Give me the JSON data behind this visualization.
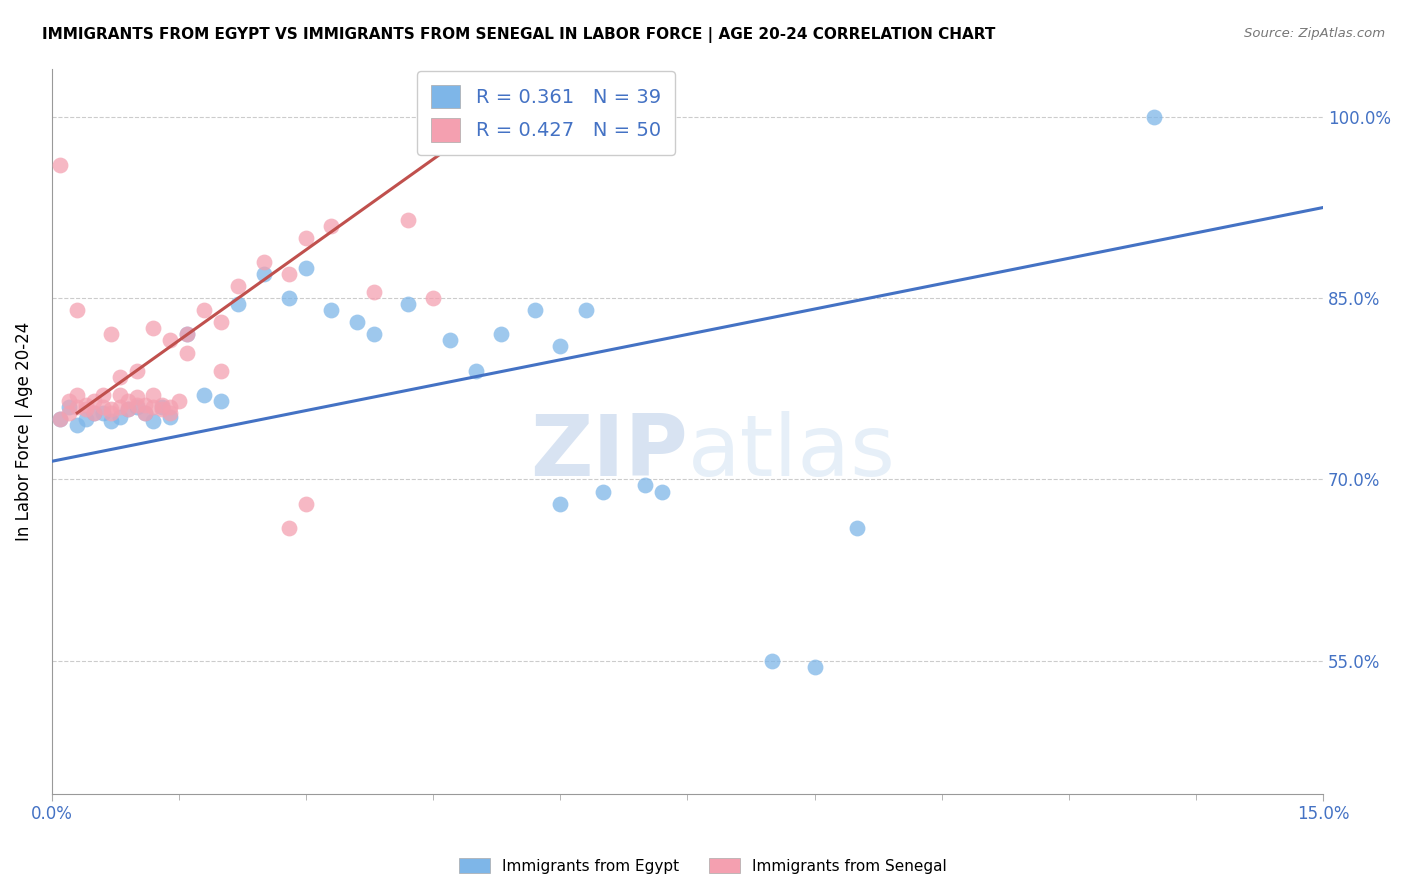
{
  "title": "IMMIGRANTS FROM EGYPT VS IMMIGRANTS FROM SENEGAL IN LABOR FORCE | AGE 20-24 CORRELATION CHART",
  "source": "Source: ZipAtlas.com",
  "ylabel": "In Labor Force | Age 20-24",
  "xlim": [
    0.0,
    0.15
  ],
  "ylim": [
    0.44,
    1.04
  ],
  "xtick_major": [
    0.0,
    0.15
  ],
  "xtick_major_labels": [
    "0.0%",
    "15.0%"
  ],
  "xtick_minor": [
    0.015,
    0.03,
    0.045,
    0.06,
    0.075,
    0.09,
    0.105,
    0.12,
    0.135
  ],
  "yticks": [
    0.55,
    0.7,
    0.85,
    1.0
  ],
  "ytick_labels": [
    "55.0%",
    "70.0%",
    "85.0%",
    "100.0%"
  ],
  "gridline_color": "#cccccc",
  "egypt_color": "#7EB6E8",
  "senegal_color": "#F4A0B0",
  "egypt_line_color": "#4472C4",
  "senegal_line_color": "#C0504D",
  "egypt_R": 0.361,
  "egypt_N": 39,
  "senegal_R": 0.427,
  "senegal_N": 50,
  "egypt_line_x0": 0.0,
  "egypt_line_y0": 0.715,
  "egypt_line_x1": 0.15,
  "egypt_line_y1": 0.925,
  "senegal_line_x0": 0.003,
  "senegal_line_y0": 0.755,
  "senegal_line_x1": 0.05,
  "senegal_line_y1": 0.99,
  "egypt_scatter_x": [
    0.001,
    0.002,
    0.003,
    0.004,
    0.005,
    0.006,
    0.007,
    0.008,
    0.009,
    0.01,
    0.011,
    0.012,
    0.013,
    0.014,
    0.016,
    0.018,
    0.02,
    0.022,
    0.025,
    0.028,
    0.03,
    0.033,
    0.036,
    0.038,
    0.042,
    0.047,
    0.05,
    0.053,
    0.057,
    0.06,
    0.063,
    0.07,
    0.072,
    0.085,
    0.09,
    0.095,
    0.13,
    0.06,
    0.065
  ],
  "egypt_scatter_y": [
    0.75,
    0.76,
    0.745,
    0.75,
    0.755,
    0.755,
    0.748,
    0.752,
    0.758,
    0.76,
    0.755,
    0.748,
    0.76,
    0.752,
    0.82,
    0.77,
    0.765,
    0.845,
    0.87,
    0.85,
    0.875,
    0.84,
    0.83,
    0.82,
    0.845,
    0.815,
    0.79,
    0.82,
    0.84,
    0.81,
    0.84,
    0.695,
    0.69,
    0.55,
    0.545,
    0.66,
    1.0,
    0.68,
    0.69
  ],
  "senegal_scatter_x": [
    0.001,
    0.001,
    0.002,
    0.002,
    0.003,
    0.003,
    0.004,
    0.004,
    0.005,
    0.005,
    0.006,
    0.006,
    0.007,
    0.007,
    0.008,
    0.008,
    0.009,
    0.009,
    0.01,
    0.01,
    0.011,
    0.011,
    0.012,
    0.012,
    0.013,
    0.013,
    0.014,
    0.014,
    0.015,
    0.016,
    0.018,
    0.02,
    0.022,
    0.025,
    0.028,
    0.03,
    0.033,
    0.038,
    0.042,
    0.045,
    0.028,
    0.03,
    0.003,
    0.007,
    0.008,
    0.01,
    0.012,
    0.014,
    0.016,
    0.02
  ],
  "senegal_scatter_y": [
    0.96,
    0.75,
    0.755,
    0.765,
    0.76,
    0.77,
    0.758,
    0.762,
    0.755,
    0.765,
    0.76,
    0.77,
    0.758,
    0.755,
    0.76,
    0.77,
    0.765,
    0.758,
    0.762,
    0.768,
    0.755,
    0.762,
    0.76,
    0.77,
    0.758,
    0.762,
    0.76,
    0.755,
    0.765,
    0.82,
    0.84,
    0.83,
    0.86,
    0.88,
    0.87,
    0.9,
    0.91,
    0.855,
    0.915,
    0.85,
    0.66,
    0.68,
    0.84,
    0.82,
    0.785,
    0.79,
    0.825,
    0.815,
    0.805,
    0.79
  ]
}
